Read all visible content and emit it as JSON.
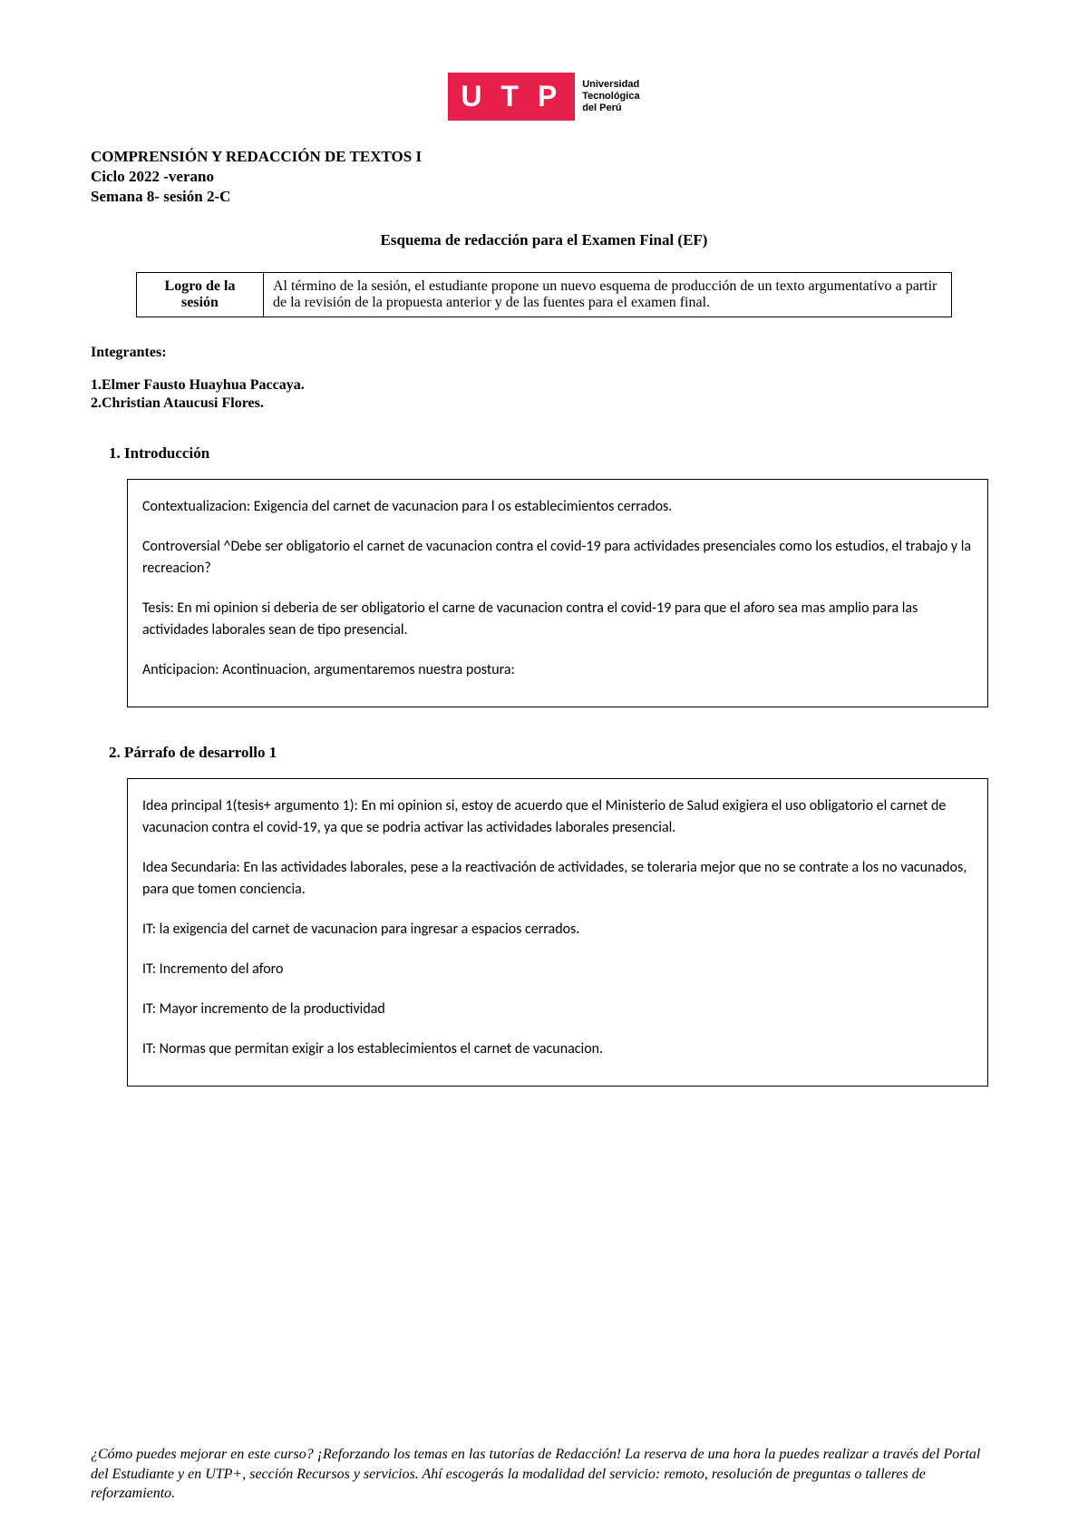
{
  "logo": {
    "text": "U T P",
    "tagline_line1": "Universidad",
    "tagline_line2": "Tecnológica",
    "tagline_line3": "del Perú",
    "bg_color": "#e6204b",
    "text_color": "#ffffff"
  },
  "header": {
    "line1": "COMPRENSIÓN Y REDACCIÓN DE TEXTOS I",
    "line2": "Ciclo 2022 -verano",
    "line3": "Semana 8- sesión 2-C"
  },
  "doc_title": "Esquema de redacción para el Examen Final (EF)",
  "logro": {
    "label": "Logro de la sesión",
    "text": "Al término de la sesión, el estudiante propone un nuevo esquema de producción de un texto argumentativo a partir de la revisión de la propuesta anterior y de las fuentes para el examen final."
  },
  "integrantes": {
    "label": "Integrantes:",
    "items": [
      "1.Elmer Fausto Huayhua Paccaya.",
      "2.Christian Ataucusi Flores."
    ]
  },
  "section1": {
    "heading": "1. Introducción",
    "paragraphs": [
      "Contextualizacion: Exigencia del carnet de vacunacion para l os establecimientos cerrados.",
      "Controversial ^Debe ser obligatorio el carnet de vacunacion contra el covid-19 para actividades presenciales como los estudios, el trabajo y la recreacion?",
      "Tesis: En mi opinion si deberia de ser obligatorio el carne de vacunacion contra el covid-19 para que el aforo sea mas amplio para las actividades laborales sean de tipo presencial.",
      "Anticipacion: Acontinuacion, argumentaremos nuestra postura:"
    ]
  },
  "section2": {
    "heading": "2. Párrafo de desarrollo 1",
    "paragraphs": [
      "Idea principal 1(tesis+ argumento 1): En mi opinion si, estoy de acuerdo que el Ministerio de Salud exigiera el uso obligatorio el carnet de vacunacion contra el covid-19, ya que se podria activar las actividades laborales presencial.",
      "Idea Secundaria: En las actividades laborales, pese a la reactivación de actividades, se toleraria mejor que no se contrate a los no vacunados, para que tomen conciencia.",
      "IT: la exigencia del carnet de vacunacion para ingresar a espacios cerrados.",
      "IT: Incremento del aforo",
      "IT: Mayor incremento de la productividad",
      "IT: Normas que permitan exigir a los establecimientos el carnet de vacunacion."
    ]
  },
  "footer": "¿Cómo puedes mejorar en este curso? ¡Reforzando los temas en las tutorías de Redacción! La reserva de una hora la puedes realizar a través del Portal del Estudiante y en UTP+, sección Recursos y servicios. Ahí escogerás la modalidad del servicio: remoto, resolución de preguntas o talleres de reforzamiento."
}
